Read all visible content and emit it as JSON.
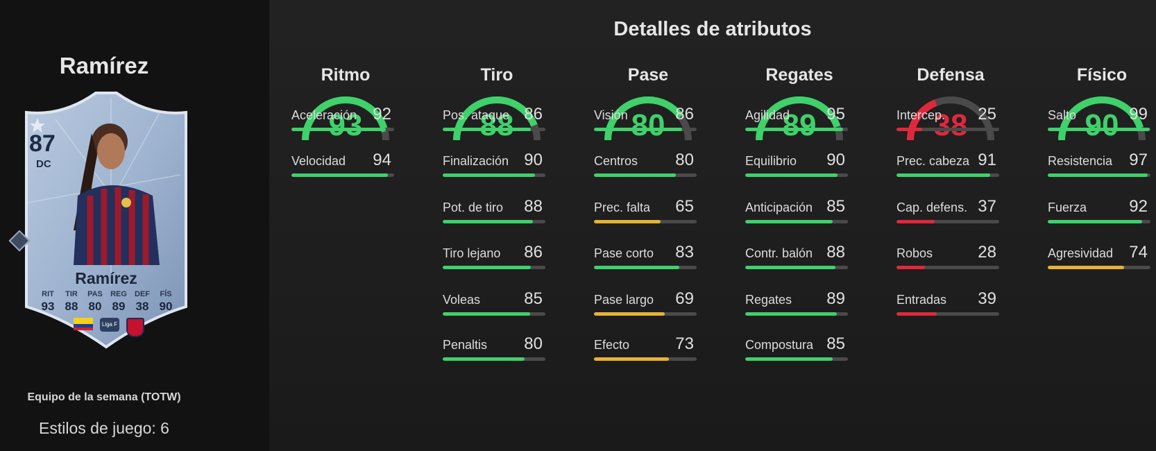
{
  "player": {
    "name": "Ramírez",
    "card_rating": "87",
    "card_position": "DC",
    "card_name": "Ramírez",
    "card_stats": [
      {
        "label": "RIT",
        "value": "93"
      },
      {
        "label": "TIR",
        "value": "88"
      },
      {
        "label": "PAS",
        "value": "80"
      },
      {
        "label": "REG",
        "value": "89"
      },
      {
        "label": "DEF",
        "value": "38"
      },
      {
        "label": "FÍS",
        "value": "90"
      }
    ],
    "league_badge": "Liga F",
    "team": "Equipo de la semana (TOTW)",
    "styles": "Estilos de juego: 6"
  },
  "colors": {
    "green": "#3fd16a",
    "yellow": "#e7b335",
    "red": "#e0283c",
    "track": "#4a4a4a"
  },
  "attributes": {
    "title": "Detalles de atributos",
    "categories": [
      {
        "name": "Ritmo",
        "value": 93,
        "stats": [
          {
            "label": "Aceleración",
            "value": 92
          },
          {
            "label": "Velocidad",
            "value": 94
          }
        ]
      },
      {
        "name": "Tiro",
        "value": 88,
        "stats": [
          {
            "label": "Pos. ataque",
            "value": 86
          },
          {
            "label": "Finalización",
            "value": 90
          },
          {
            "label": "Pot. de tiro",
            "value": 88
          },
          {
            "label": "Tiro lejano",
            "value": 86
          },
          {
            "label": "Voleas",
            "value": 85
          },
          {
            "label": "Penaltis",
            "value": 80
          }
        ]
      },
      {
        "name": "Pase",
        "value": 80,
        "stats": [
          {
            "label": "Visión",
            "value": 86
          },
          {
            "label": "Centros",
            "value": 80
          },
          {
            "label": "Prec. falta",
            "value": 65
          },
          {
            "label": "Pase corto",
            "value": 83
          },
          {
            "label": "Pase largo",
            "value": 69
          },
          {
            "label": "Efecto",
            "value": 73
          }
        ]
      },
      {
        "name": "Regates",
        "value": 89,
        "stats": [
          {
            "label": "Agilidad",
            "value": 95
          },
          {
            "label": "Equilibrio",
            "value": 90
          },
          {
            "label": "Anticipación",
            "value": 85
          },
          {
            "label": "Contr. balón",
            "value": 88
          },
          {
            "label": "Regates",
            "value": 89
          },
          {
            "label": "Compostura",
            "value": 85
          }
        ]
      },
      {
        "name": "Defensa",
        "value": 38,
        "stats": [
          {
            "label": "Intercep.",
            "value": 25
          },
          {
            "label": "Prec. cabeza",
            "value": 91
          },
          {
            "label": "Cap. defens.",
            "value": 37
          },
          {
            "label": "Robos",
            "value": 28
          },
          {
            "label": "Entradas",
            "value": 39
          }
        ]
      },
      {
        "name": "Físico",
        "value": 90,
        "stats": [
          {
            "label": "Salto",
            "value": 99
          },
          {
            "label": "Resistencia",
            "value": 97
          },
          {
            "label": "Fuerza",
            "value": 92
          },
          {
            "label": "Agresividad",
            "value": 74
          }
        ]
      }
    ]
  }
}
